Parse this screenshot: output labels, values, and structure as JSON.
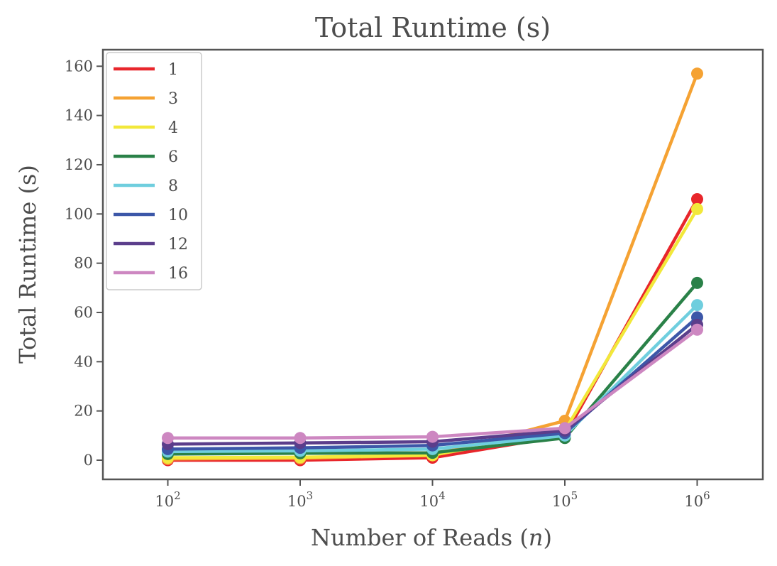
{
  "chart_data": {
    "type": "line",
    "title": "Total Runtime (s)",
    "xlabel": "Number of Reads (",
    "xlabel_var": "n",
    "xlabel_end": ")",
    "ylabel": "Total Runtime (s)",
    "xscale": "log",
    "x": [
      100,
      1000,
      10000,
      100000,
      1000000
    ],
    "x_tick_base": "10",
    "x_tick_exponents": [
      "2",
      "3",
      "4",
      "5",
      "6"
    ],
    "y_ticks": [
      "0",
      "20",
      "40",
      "60",
      "80",
      "100",
      "120",
      "140",
      "160"
    ],
    "ylim": [
      -8,
      167
    ],
    "grid": false,
    "legend_position": "upper-left",
    "series": [
      {
        "name": "1",
        "color": "#e8262b",
        "values": [
          0,
          0,
          1,
          10,
          106
        ]
      },
      {
        "name": "3",
        "color": "#f5a233",
        "values": [
          0.5,
          0.8,
          2,
          16,
          157
        ]
      },
      {
        "name": "4",
        "color": "#f2e83a",
        "values": [
          1,
          1.2,
          2,
          12,
          102
        ]
      },
      {
        "name": "6",
        "color": "#2a8148",
        "values": [
          2.5,
          2.8,
          3,
          9,
          72
        ]
      },
      {
        "name": "8",
        "color": "#6fcede",
        "values": [
          3.5,
          3.8,
          4.5,
          10,
          63
        ]
      },
      {
        "name": "10",
        "color": "#3c57a8",
        "values": [
          4.5,
          5,
          6,
          11,
          58
        ]
      },
      {
        "name": "12",
        "color": "#5b3e8b",
        "values": [
          6.5,
          7,
          7.5,
          12,
          55
        ]
      },
      {
        "name": "16",
        "color": "#cd87c1",
        "values": [
          9,
          9,
          9.5,
          13,
          53
        ]
      }
    ]
  }
}
